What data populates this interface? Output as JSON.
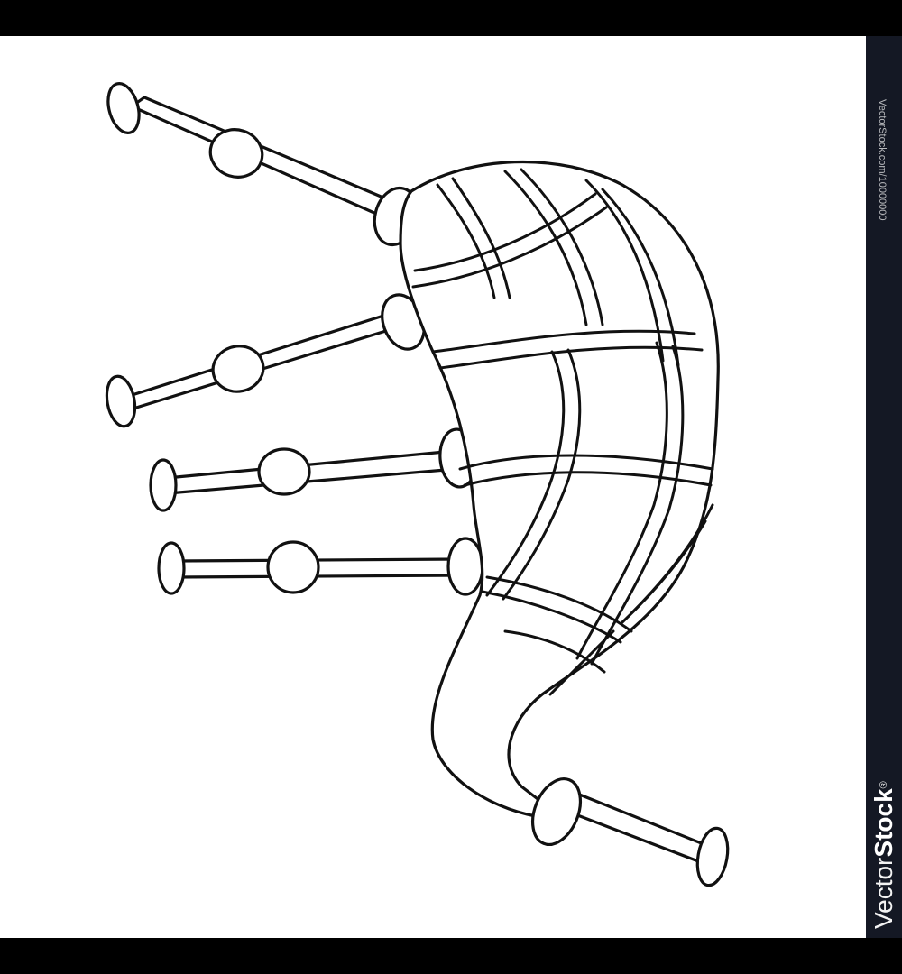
{
  "image": {
    "subject": "bagpipes-outline-icon",
    "colors": {
      "background": "#ffffff",
      "line": "#111111",
      "frame": "#000000",
      "strip": "#141824"
    }
  },
  "watermark": {
    "brand_light": "Vector",
    "brand_bold": "Stock",
    "registered": "®",
    "id_text": "VectorStock.com/10000000"
  }
}
